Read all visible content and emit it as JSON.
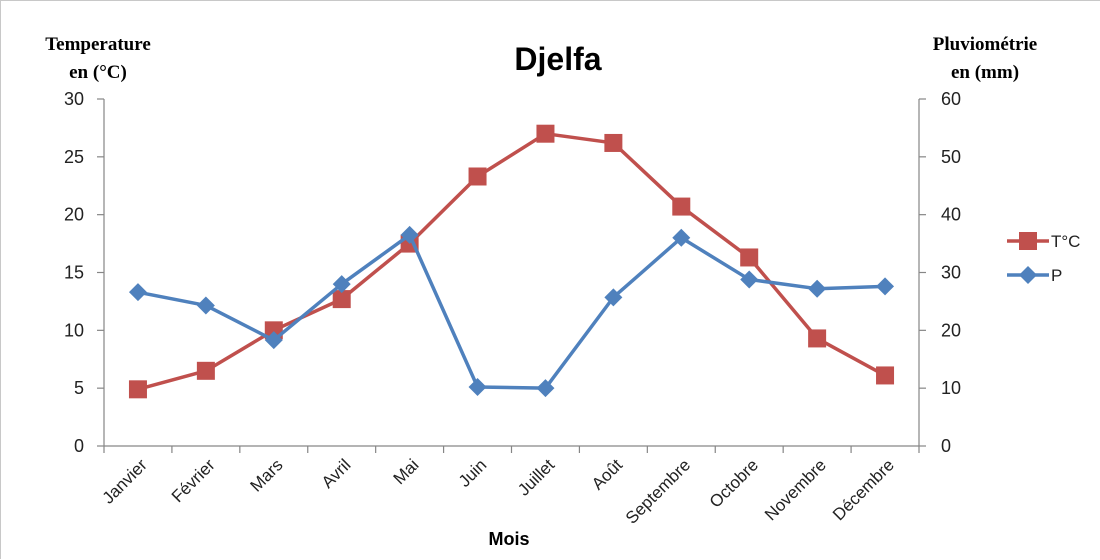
{
  "chart_data": {
    "type": "line",
    "title": "Djelfa",
    "xlabel": "Mois",
    "ylabel_left": [
      "Temperature",
      "en (°C)"
    ],
    "ylabel_right": [
      "Pluviométrie",
      "en (mm)"
    ],
    "ylim_left": [
      0,
      30
    ],
    "ylim_right": [
      0,
      60
    ],
    "yticks_left": [
      "0",
      "5",
      "10",
      "15",
      "20",
      "25",
      "30"
    ],
    "yticks_right": [
      "0",
      "10",
      "20",
      "30",
      "40",
      "50",
      "60"
    ],
    "grid": false,
    "legend_position": "right",
    "categories": [
      "Janvier",
      "Février",
      "Mars",
      "Avril",
      "Mai",
      "Juin",
      "Juillet",
      "Août",
      "Septembre",
      "Octobre",
      "Novembre",
      "Décembre"
    ],
    "series": [
      {
        "name": "T°C",
        "axis": "left",
        "color": "#c0504d",
        "marker": "square",
        "values": [
          4.9,
          6.5,
          10.0,
          12.7,
          17.5,
          23.3,
          27.0,
          26.2,
          20.7,
          16.3,
          9.3,
          6.1
        ]
      },
      {
        "name": "P",
        "axis": "right",
        "color": "#4f81bd",
        "marker": "diamond",
        "values": [
          26.6,
          24.3,
          18.3,
          28.0,
          36.5,
          10.2,
          10.0,
          25.7,
          36.0,
          28.8,
          27.2,
          27.6
        ]
      }
    ]
  }
}
